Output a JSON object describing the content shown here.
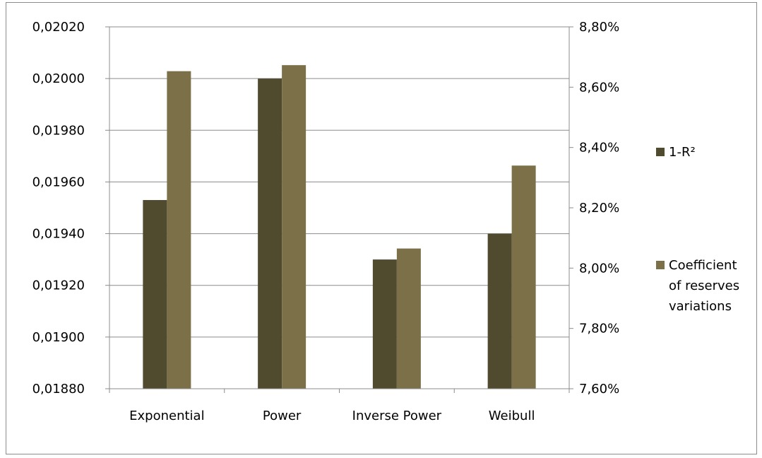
{
  "chart_data": {
    "type": "bar",
    "categories": [
      "Exponential",
      "Power",
      "Inverse Power",
      "Weibull"
    ],
    "series": [
      {
        "name": "1-R²",
        "axis": "left",
        "color": "#504a2e",
        "values": [
          0.01953,
          0.02,
          0.0193,
          0.0194
        ]
      },
      {
        "name": "Coefficient of reserves variations",
        "axis": "right",
        "color": "#7b7048",
        "values": [
          8.653,
          8.673,
          8.065,
          8.34
        ]
      }
    ],
    "y_left": {
      "range": [
        0.0188,
        0.0202
      ],
      "ticks": [
        "0,01880",
        "0,01900",
        "0,01920",
        "0,01940",
        "0,01960",
        "0,01980",
        "0,02000",
        "0,02020"
      ]
    },
    "y_right": {
      "unit": "%",
      "range": [
        7.6,
        8.8
      ],
      "ticks": [
        "7,60%",
        "7,80%",
        "8,00%",
        "8,20%",
        "8,40%",
        "8,60%",
        "8,80%"
      ]
    },
    "grid": true,
    "legend_position": "right",
    "legend_lines": [
      [
        "1-R²"
      ],
      [
        "Coefficient",
        "of reserves",
        "variations"
      ]
    ]
  }
}
